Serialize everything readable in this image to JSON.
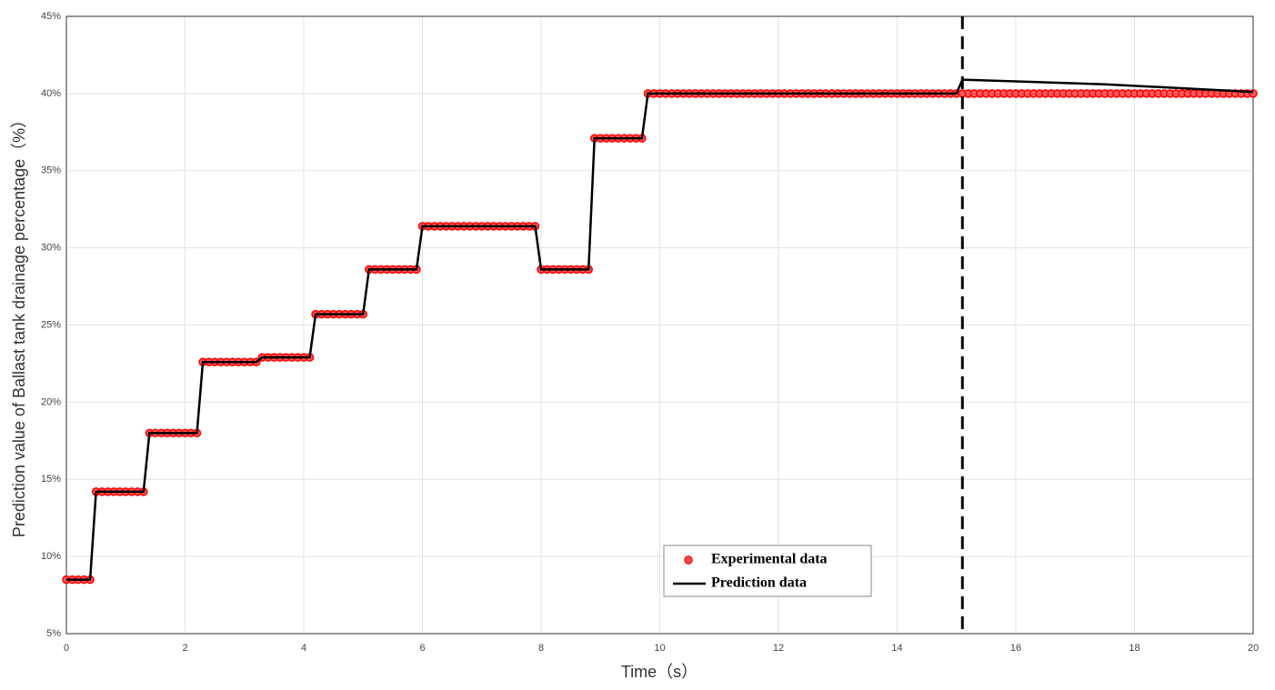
{
  "chart_data": {
    "type": "line",
    "xlabel": "Time（s）",
    "ylabel": "Prediction value of Ballast tank drainage percentage（%）",
    "xlim": [
      0,
      20
    ],
    "xticks": [
      0,
      2,
      4,
      6,
      8,
      10,
      12,
      14,
      16,
      18,
      20
    ],
    "ylim": [
      5,
      45
    ],
    "yticks": [
      {
        "value": 5,
        "label": "5%"
      },
      {
        "value": 10,
        "label": "10%"
      },
      {
        "value": 15,
        "label": "15%"
      },
      {
        "value": 20,
        "label": "20%"
      },
      {
        "value": 25,
        "label": "25%"
      },
      {
        "value": 30,
        "label": "30%"
      },
      {
        "value": 35,
        "label": "35%"
      },
      {
        "value": 40,
        "label": "40%"
      },
      {
        "value": 45,
        "label": "45%"
      }
    ],
    "grid": true,
    "legend": "lower center",
    "vline": 15.1,
    "series": [
      {
        "name": "Experimental data",
        "color": "#ff0000",
        "marker": "circle",
        "x": [
          0,
          0.1,
          0.2,
          0.3,
          0.4,
          0.5,
          0.6,
          0.7,
          0.8,
          0.9,
          1,
          1.1,
          1.2,
          1.3,
          1.4,
          1.5,
          1.6,
          1.7,
          1.8,
          1.9,
          2,
          2.1,
          2.2,
          2.3,
          2.4,
          2.5,
          2.6,
          2.7,
          2.8,
          2.9,
          3,
          3.1,
          3.2,
          3.3,
          3.4,
          3.5,
          3.6,
          3.7,
          3.8,
          3.9,
          4,
          4.1,
          4.2,
          4.3,
          4.4,
          4.5,
          4.6,
          4.7,
          4.8,
          4.9,
          5,
          5.1,
          5.2,
          5.3,
          5.4,
          5.5,
          5.6,
          5.7,
          5.8,
          5.9,
          6,
          6.1,
          6.2,
          6.3,
          6.4,
          6.5,
          6.6,
          6.7,
          6.8,
          6.9,
          7,
          7.1,
          7.2,
          7.3,
          7.4,
          7.5,
          7.6,
          7.7,
          7.8,
          7.9,
          8,
          8.1,
          8.2,
          8.3,
          8.4,
          8.5,
          8.6,
          8.7,
          8.8,
          8.9,
          9,
          9.1,
          9.2,
          9.3,
          9.4,
          9.5,
          9.6,
          9.7,
          9.8,
          9.9,
          10,
          10.1,
          10.2,
          10.3,
          10.4,
          10.5,
          10.6,
          10.7,
          10.8,
          10.9,
          11,
          11.1,
          11.2,
          11.3,
          11.4,
          11.5,
          11.6,
          11.7,
          11.8,
          11.9,
          12,
          12.1,
          12.2,
          12.3,
          12.4,
          12.5,
          12.6,
          12.7,
          12.8,
          12.9,
          13,
          13.1,
          13.2,
          13.3,
          13.4,
          13.5,
          13.6,
          13.7,
          13.8,
          13.9,
          14,
          14.1,
          14.2,
          14.3,
          14.4,
          14.5,
          14.6,
          14.7,
          14.8,
          14.9,
          15,
          15.1,
          15.2,
          15.3,
          15.4,
          15.5,
          15.6,
          15.7,
          15.8,
          15.9,
          16,
          16.1,
          16.2,
          16.3,
          16.4,
          16.5,
          16.6,
          16.7,
          16.8,
          16.9,
          17,
          17.1,
          17.2,
          17.3,
          17.4,
          17.5,
          17.6,
          17.7,
          17.8,
          17.9,
          18,
          18.1,
          18.2,
          18.3,
          18.4,
          18.5,
          18.6,
          18.7,
          18.8,
          18.9,
          19,
          19.1,
          19.2,
          19.3,
          19.4,
          19.5,
          19.6,
          19.7,
          19.8,
          19.9,
          20
        ],
        "values": [
          8.5,
          8.5,
          8.5,
          8.5,
          8.5,
          14.2,
          14.2,
          14.2,
          14.2,
          14.2,
          14.2,
          14.2,
          14.2,
          14.2,
          18,
          18,
          18,
          18,
          18,
          18,
          18,
          18,
          18,
          22.6,
          22.6,
          22.6,
          22.6,
          22.6,
          22.6,
          22.6,
          22.6,
          22.6,
          22.6,
          22.9,
          22.9,
          22.9,
          22.9,
          22.9,
          22.9,
          22.9,
          22.9,
          22.9,
          25.7,
          25.7,
          25.7,
          25.7,
          25.7,
          25.7,
          25.7,
          25.7,
          25.7,
          28.6,
          28.6,
          28.6,
          28.6,
          28.6,
          28.6,
          28.6,
          28.6,
          28.6,
          31.4,
          31.4,
          31.4,
          31.4,
          31.4,
          31.4,
          31.4,
          31.4,
          31.4,
          31.4,
          31.4,
          31.4,
          31.4,
          31.4,
          31.4,
          31.4,
          31.4,
          31.4,
          31.4,
          31.4,
          28.6,
          28.6,
          28.6,
          28.6,
          28.6,
          28.6,
          28.6,
          28.6,
          28.6,
          37.1,
          37.1,
          37.1,
          37.1,
          37.1,
          37.1,
          37.1,
          37.1,
          37.1,
          40,
          40,
          40,
          40,
          40,
          40,
          40,
          40,
          40,
          40,
          40,
          40,
          40,
          40,
          40,
          40,
          40,
          40,
          40,
          40,
          40,
          40,
          40,
          40,
          40,
          40,
          40,
          40,
          40,
          40,
          40,
          40,
          40,
          40,
          40,
          40,
          40,
          40,
          40,
          40,
          40,
          40,
          40,
          40,
          40,
          40,
          40,
          40,
          40,
          40,
          40,
          40,
          40,
          40,
          40,
          40,
          40,
          40,
          40,
          40,
          40,
          40,
          40,
          40,
          40,
          40,
          40,
          40,
          40,
          40,
          40,
          40,
          40,
          40,
          40,
          40,
          40,
          40,
          40,
          40,
          40,
          40,
          40,
          40,
          40,
          40,
          40,
          40,
          40,
          40,
          40,
          40,
          40,
          40,
          40,
          40,
          40,
          40,
          40,
          40,
          40,
          40,
          40
        ]
      },
      {
        "name": "Prediction data",
        "color": "#000000",
        "marker": "line",
        "x": [
          0,
          0.4,
          0.5,
          1.3,
          1.4,
          2.2,
          2.3,
          3.2,
          3.3,
          4.1,
          4.2,
          5,
          5.1,
          5.9,
          6,
          7.9,
          8,
          8.8,
          8.9,
          9.7,
          9.8,
          15,
          15.1,
          17.5,
          20
        ],
        "values": [
          8.5,
          8.5,
          14.2,
          14.2,
          18,
          18,
          22.6,
          22.6,
          22.9,
          22.9,
          25.7,
          25.7,
          28.6,
          28.6,
          31.4,
          31.4,
          28.6,
          28.6,
          37.1,
          37.1,
          40,
          40,
          40.9,
          40.6,
          40.1
        ]
      }
    ]
  }
}
